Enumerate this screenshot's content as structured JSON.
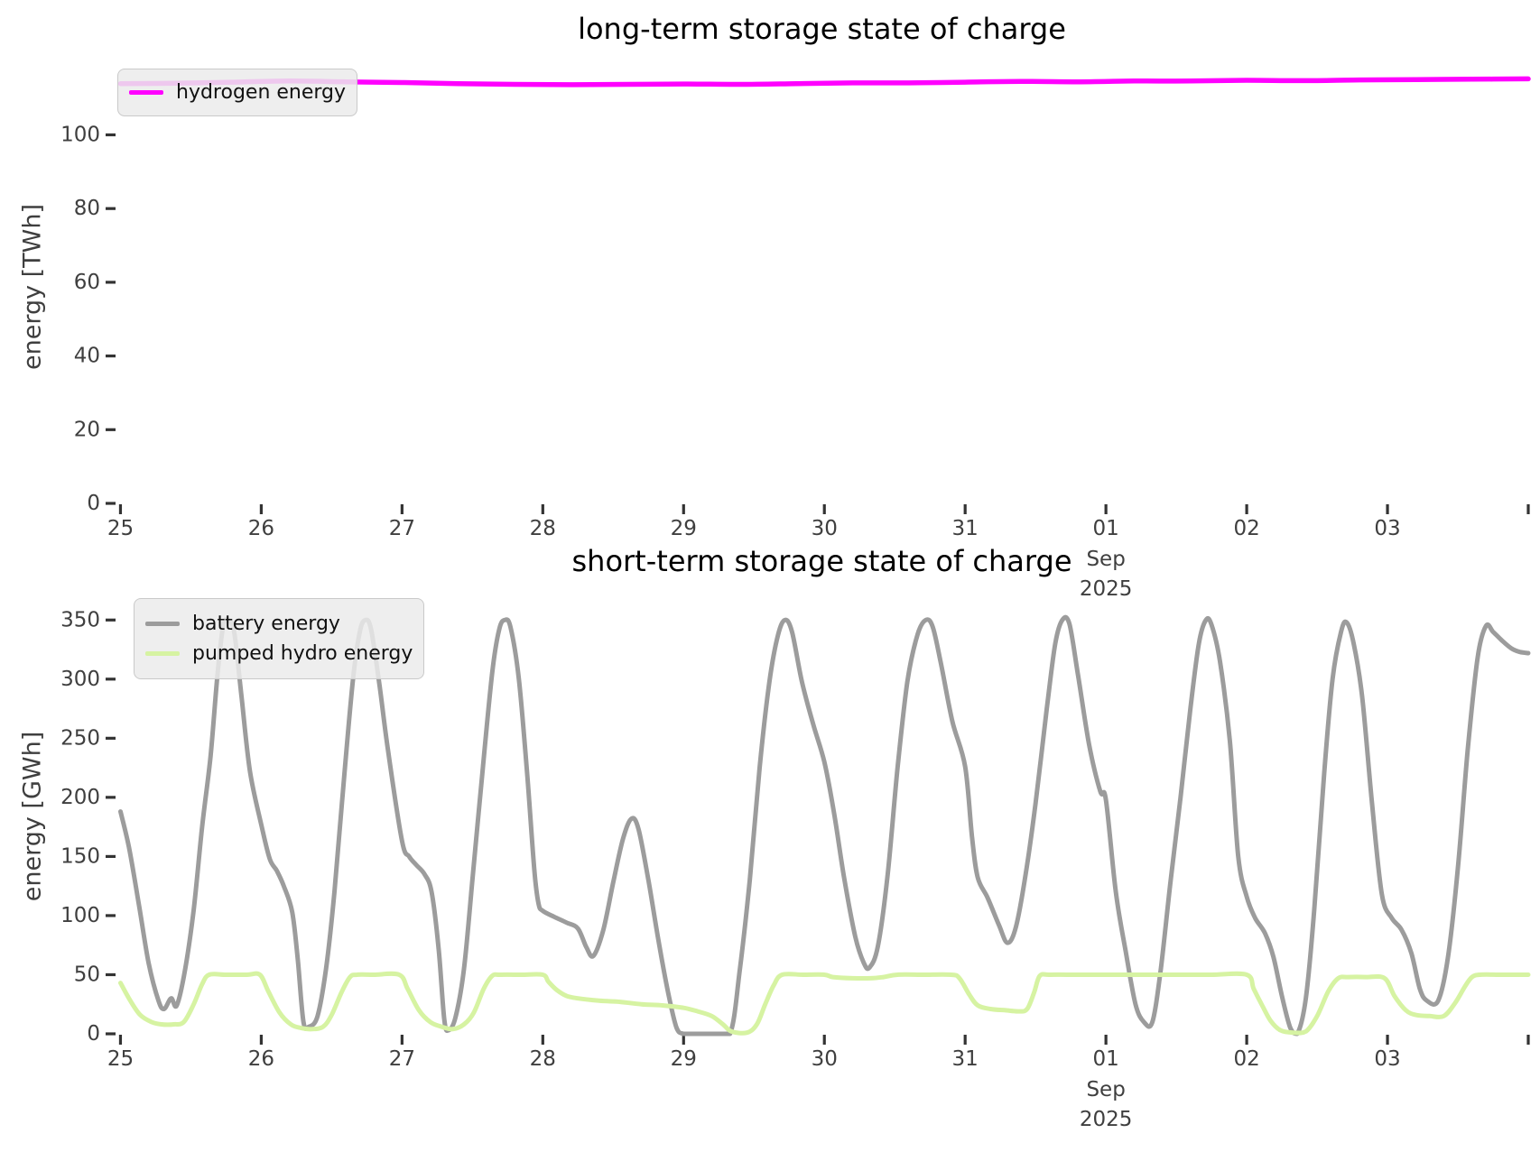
{
  "figure": {
    "background": "#ffffff"
  },
  "colors": {
    "hydrogen": "#ff00ff",
    "battery": "#9c9c9c",
    "pumped_hydro": "#d6f3a2",
    "tick_label": "#3f3f3f",
    "tick_mark": "#333333",
    "title": "#000000",
    "legend_bg": "#ebebeb",
    "legend_border": "#c9c9c9"
  },
  "chart_data": [
    {
      "type": "line",
      "title": "long-term storage state of charge",
      "ylabel": "energy [TWh]",
      "grid": false,
      "legend_position": "upper left",
      "ylim": [
        0,
        117.5
      ],
      "yticks": [
        0,
        20,
        40,
        60,
        80,
        100
      ],
      "x_axis": {
        "unit": "days from Aug 25 2025",
        "tick_values": [
          0,
          1,
          2,
          3,
          4,
          5,
          6,
          7,
          8,
          9,
          10
        ],
        "tick_labels": [
          "25",
          "26",
          "27",
          "28",
          "29",
          "30",
          "31",
          "01",
          "02",
          "03",
          ""
        ],
        "month_under_index": 7,
        "month_label": "Sep",
        "year_label": "2025"
      },
      "series": [
        {
          "name": "hydrogen energy",
          "color": "#ff00ff",
          "width": 5.5,
          "x": [
            0,
            0.4,
            0.8,
            1.2,
            1.6,
            2,
            2.4,
            2.8,
            3.2,
            3.6,
            4,
            4.4,
            4.8,
            5.2,
            5.6,
            6,
            6.4,
            6.8,
            7.2,
            7.6,
            8,
            8.4,
            8.8,
            9.2,
            9.6,
            10
          ],
          "y": [
            113.9,
            114.0,
            114.3,
            114.6,
            114.4,
            114.2,
            113.9,
            113.7,
            113.6,
            113.7,
            113.8,
            113.7,
            113.9,
            114.1,
            114.1,
            114.3,
            114.5,
            114.4,
            114.6,
            114.6,
            114.8,
            114.7,
            114.9,
            115.0,
            115.1,
            115.2
          ]
        }
      ]
    },
    {
      "type": "line",
      "title": "short-term storage state of charge",
      "ylabel": "energy [GWh]",
      "grid": false,
      "legend_position": "upper left",
      "ylim": [
        0,
        367
      ],
      "yticks": [
        0,
        50,
        100,
        150,
        200,
        250,
        300,
        350
      ],
      "x_axis": {
        "unit": "days from Aug 25 2025",
        "tick_values": [
          0,
          1,
          2,
          3,
          4,
          5,
          6,
          7,
          8,
          9,
          10
        ],
        "tick_labels": [
          "25",
          "26",
          "27",
          "28",
          "29",
          "30",
          "31",
          "01",
          "02",
          "03",
          ""
        ],
        "month_under_index": 7,
        "month_label": "Sep",
        "year_label": "2025"
      },
      "series": [
        {
          "name": "battery energy",
          "color": "#9c9c9c",
          "width": 5,
          "x": [
            0,
            0.06,
            0.13,
            0.2,
            0.27,
            0.31,
            0.36,
            0.4,
            0.46,
            0.52,
            0.58,
            0.64,
            0.69,
            0.73,
            0.77,
            0.81,
            0.86,
            0.92,
            1.0,
            1.06,
            1.11,
            1.16,
            1.22,
            1.26,
            1.3,
            1.34,
            1.4,
            1.46,
            1.52,
            1.58,
            1.65,
            1.7,
            1.74,
            1.78,
            1.84,
            1.9,
            2.0,
            2.05,
            2.1,
            2.16,
            2.21,
            2.26,
            2.3,
            2.33,
            2.38,
            2.44,
            2.5,
            2.57,
            2.64,
            2.69,
            2.73,
            2.77,
            2.83,
            2.89,
            2.94,
            2.97,
            3.0,
            3.08,
            3.17,
            3.25,
            3.31,
            3.36,
            3.43,
            3.5,
            3.57,
            3.63,
            3.68,
            3.75,
            3.82,
            3.89,
            3.95,
            4.0,
            4.1,
            4.2,
            4.33,
            4.4,
            4.47,
            4.54,
            4.61,
            4.67,
            4.72,
            4.77,
            4.84,
            4.92,
            5.0,
            5.07,
            5.14,
            5.22,
            5.28,
            5.32,
            5.38,
            5.45,
            5.52,
            5.59,
            5.66,
            5.72,
            5.77,
            5.83,
            5.91,
            6.0,
            6.05,
            6.09,
            6.16,
            6.24,
            6.3,
            6.36,
            6.43,
            6.5,
            6.58,
            6.64,
            6.69,
            6.74,
            6.8,
            6.88,
            6.96,
            7.0,
            7.07,
            7.14,
            7.21,
            7.27,
            7.33,
            7.39,
            7.46,
            7.53,
            7.6,
            7.66,
            7.71,
            7.75,
            7.81,
            7.88,
            7.94,
            8.0,
            8.06,
            8.13,
            8.19,
            8.25,
            8.31,
            8.36,
            8.42,
            8.48,
            8.55,
            8.61,
            8.67,
            8.71,
            8.76,
            8.82,
            8.89,
            8.96,
            9.03,
            9.1,
            9.17,
            9.23,
            9.28,
            9.36,
            9.43,
            9.5,
            9.57,
            9.64,
            9.7,
            9.75,
            9.81,
            9.88,
            9.94,
            10.0
          ],
          "y": [
            188,
            158,
            110,
            60,
            28,
            21,
            30,
            24,
            55,
            105,
            175,
            235,
            305,
            345,
            350,
            338,
            285,
            222,
            177,
            148,
            138,
            125,
            103,
            62,
            10,
            6,
            15,
            55,
            120,
            205,
            298,
            340,
            350,
            342,
            295,
            240,
            163,
            150,
            143,
            135,
            120,
            72,
            12,
            3,
            14,
            55,
            130,
            220,
            305,
            342,
            350,
            344,
            300,
            218,
            138,
            110,
            104,
            99,
            94,
            89,
            73,
            66,
            88,
            128,
            165,
            182,
            173,
            130,
            80,
            35,
            5,
            0,
            0,
            0,
            0,
            55,
            130,
            225,
            298,
            337,
            350,
            340,
            298,
            262,
            230,
            186,
            132,
            82,
            60,
            56,
            74,
            135,
            225,
            298,
            337,
            350,
            344,
            312,
            264,
            226,
            165,
            132,
            115,
            92,
            77,
            90,
            135,
            195,
            275,
            330,
            350,
            347,
            305,
            245,
            205,
            198,
            120,
            70,
            25,
            10,
            10,
            55,
            130,
            200,
            275,
            330,
            350,
            346,
            315,
            248,
            150,
            116,
            98,
            85,
            65,
            32,
            5,
            0,
            30,
            105,
            220,
            300,
            340,
            348,
            330,
            285,
            195,
            118,
            98,
            88,
            68,
            38,
            28,
            28,
            65,
            140,
            240,
            318,
            345,
            340,
            333,
            326,
            323,
            322
          ]
        },
        {
          "name": "pumped hydro energy",
          "color": "#d6f3a2",
          "width": 5,
          "x": [
            0,
            0.07,
            0.14,
            0.22,
            0.29,
            0.38,
            0.45,
            0.52,
            0.58,
            0.63,
            0.75,
            0.9,
            0.99,
            1.05,
            1.13,
            1.21,
            1.28,
            1.36,
            1.44,
            1.5,
            1.57,
            1.63,
            1.68,
            1.8,
            1.98,
            2.04,
            2.12,
            2.2,
            2.28,
            2.36,
            2.44,
            2.51,
            2.58,
            2.64,
            2.7,
            2.85,
            3.0,
            3.04,
            3.1,
            3.17,
            3.25,
            3.4,
            3.55,
            3.7,
            3.85,
            4.0,
            4.1,
            4.2,
            4.28,
            4.34,
            4.45,
            4.52,
            4.58,
            4.64,
            4.7,
            4.85,
            5.0,
            5.06,
            5.2,
            5.33,
            5.42,
            5.52,
            5.7,
            5.9,
            5.96,
            6.03,
            6.09,
            6.18,
            6.28,
            6.38,
            6.44,
            6.49,
            6.53,
            6.6,
            6.8,
            7.0,
            7.25,
            7.5,
            7.75,
            8.0,
            8.05,
            8.11,
            8.17,
            8.24,
            8.33,
            8.42,
            8.5,
            8.58,
            8.65,
            8.72,
            8.85,
            8.98,
            9.05,
            9.13,
            9.2,
            9.3,
            9.4,
            9.48,
            9.55,
            9.6,
            9.66,
            9.8,
            10.0
          ],
          "y": [
            43,
            28,
            16,
            10,
            8,
            8,
            10,
            25,
            42,
            50,
            50,
            50,
            50,
            36,
            18,
            8,
            5,
            4,
            6,
            16,
            35,
            48,
            50,
            50,
            50,
            38,
            20,
            10,
            6,
            4,
            8,
            18,
            38,
            49,
            50,
            50,
            50,
            44,
            37,
            32,
            30,
            28,
            27,
            25,
            24,
            22,
            19,
            15,
            8,
            2,
            1,
            8,
            25,
            41,
            50,
            50,
            50,
            48,
            47,
            47,
            48,
            50,
            50,
            50,
            47,
            33,
            24,
            21,
            20,
            19,
            21,
            35,
            49,
            50,
            50,
            50,
            50,
            50,
            50,
            50,
            38,
            24,
            11,
            3,
            1,
            2,
            15,
            36,
            47,
            48,
            48,
            47,
            32,
            20,
            16,
            15,
            15,
            26,
            40,
            48,
            50,
            50,
            50
          ]
        }
      ]
    }
  ]
}
